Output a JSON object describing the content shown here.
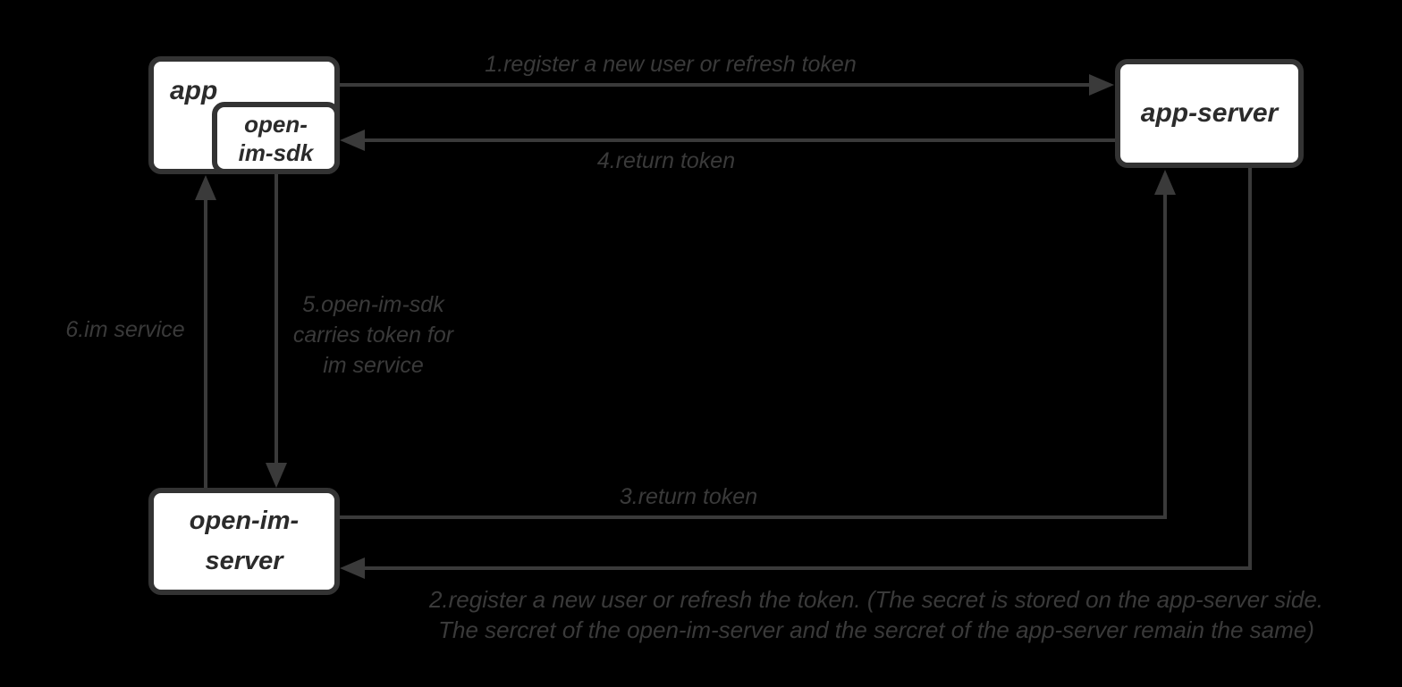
{
  "colors": {
    "background": "#000000",
    "line_ink": "#3a3a3a",
    "box_border": "#333333",
    "box_fill": "#ffffff",
    "node_text": "#2b2b2b",
    "label_text": "#3a3a3a"
  },
  "diagram": {
    "nodes": {
      "app": {
        "label": "app"
      },
      "open_im_sdk": {
        "lines": [
          "open-",
          "im-sdk"
        ]
      },
      "app_server": {
        "label": "app-server"
      },
      "open_im_server": {
        "lines": [
          "open-im-",
          "server"
        ]
      }
    },
    "edges": {
      "e1": {
        "from": "app",
        "to": "app-server",
        "direction": "right",
        "label": "1.register a new user or refresh token"
      },
      "e2": {
        "from": "app-server",
        "to": "open-im-server",
        "direction": "down-then-left",
        "lines": [
          "2.register a new user or refresh the token. (The secret is stored on the app-server side.",
          "The sercret of the open-im-server and the sercret of the app-server remain the same)"
        ]
      },
      "e3": {
        "from": "open-im-server",
        "to": "app-server",
        "direction": "right-then-up",
        "label": "3.return token"
      },
      "e4": {
        "from": "app-server",
        "to": "open-im-sdk",
        "direction": "left",
        "label": "4.return token"
      },
      "e5": {
        "from": "open-im-sdk",
        "to": "open-im-server",
        "direction": "down",
        "lines": [
          "5.open-im-sdk",
          "carries token for",
          "im service"
        ]
      },
      "e6": {
        "from": "open-im-server",
        "to": "app",
        "direction": "up",
        "label": "6.im service"
      }
    }
  }
}
